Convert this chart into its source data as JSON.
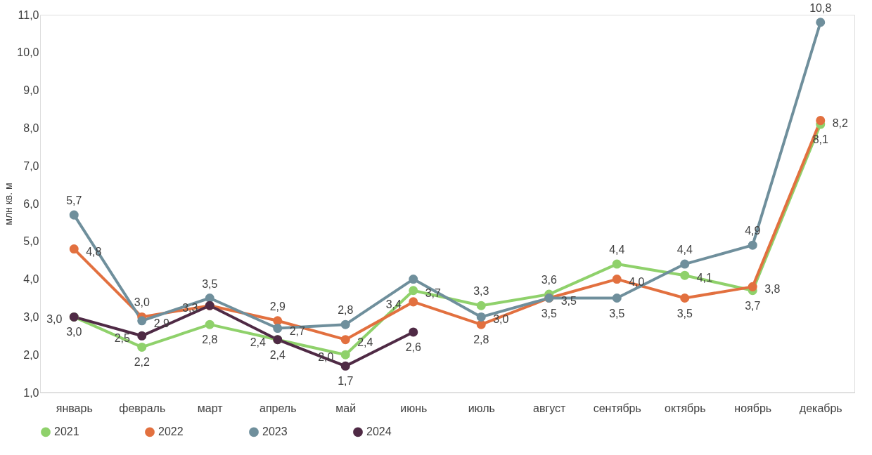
{
  "chart_data": {
    "type": "line",
    "ylabel": "млн кв. м",
    "categories": [
      "январь",
      "февраль",
      "март",
      "апрель",
      "май",
      "июнь",
      "июль",
      "август",
      "сентябрь",
      "октябрь",
      "ноябрь",
      "декабрь"
    ],
    "series": [
      {
        "name": "2021",
        "color": "#8fd16b",
        "values": [
          3.0,
          2.2,
          2.8,
          2.4,
          2.0,
          3.7,
          3.3,
          3.6,
          4.4,
          4.1,
          3.7,
          8.1
        ],
        "value_labels": [
          "3,0",
          "2,2",
          "2,8",
          "2,4",
          "2,0",
          "3,7",
          "3,3",
          "3,6",
          "4,4",
          "4,1",
          "3,7",
          "8,1"
        ]
      },
      {
        "name": "2022",
        "color": "#e2703f",
        "values": [
          4.8,
          3.0,
          3.3,
          2.9,
          2.4,
          3.4,
          2.8,
          3.5,
          4.0,
          3.5,
          3.8,
          8.2
        ],
        "value_labels": [
          "4,8",
          "3,0",
          null,
          "2,9",
          "2,4",
          "3,4",
          "2,8",
          "3,5",
          "4,0",
          "3,5",
          "3,8",
          "8,2"
        ]
      },
      {
        "name": "2023",
        "color": "#6f8f9c",
        "values": [
          5.7,
          2.9,
          3.5,
          2.7,
          2.8,
          4.0,
          3.0,
          3.5,
          3.5,
          4.4,
          4.9,
          10.8
        ],
        "value_labels": [
          "5,7",
          "2,9",
          "3,5",
          "2,7",
          "2,8",
          null,
          "3,0",
          "3,5",
          "3,5",
          "4,4",
          "4,9",
          "10,8"
        ]
      },
      {
        "name": "2024",
        "color": "#4f2a45",
        "values": [
          3.0,
          2.5,
          3.3,
          2.4,
          1.7,
          2.6,
          null,
          null,
          null,
          null,
          null,
          null
        ],
        "value_labels": [
          "3,0",
          "2,5",
          "3,3",
          "2,4",
          "1,7",
          "2,6",
          null,
          null,
          null,
          null,
          null,
          null
        ]
      }
    ],
    "ylim": [
      1.0,
      11.0
    ],
    "yticks": [
      {
        "value": 1,
        "label": "1,0"
      },
      {
        "value": 2,
        "label": "2,0"
      },
      {
        "value": 3,
        "label": "3,0"
      },
      {
        "value": 4,
        "label": "4,0"
      },
      {
        "value": 5,
        "label": "5,0"
      },
      {
        "value": 6,
        "label": "6,0"
      },
      {
        "value": 7,
        "label": "7,0"
      },
      {
        "value": 8,
        "label": "8,0"
      },
      {
        "value": 9,
        "label": "9,0"
      },
      {
        "value": 10,
        "label": "10,0"
      },
      {
        "value": 11,
        "label": "11,0"
      }
    ],
    "grid": false,
    "legend": "bottom",
    "marker": "circle",
    "line_style": "solid"
  }
}
